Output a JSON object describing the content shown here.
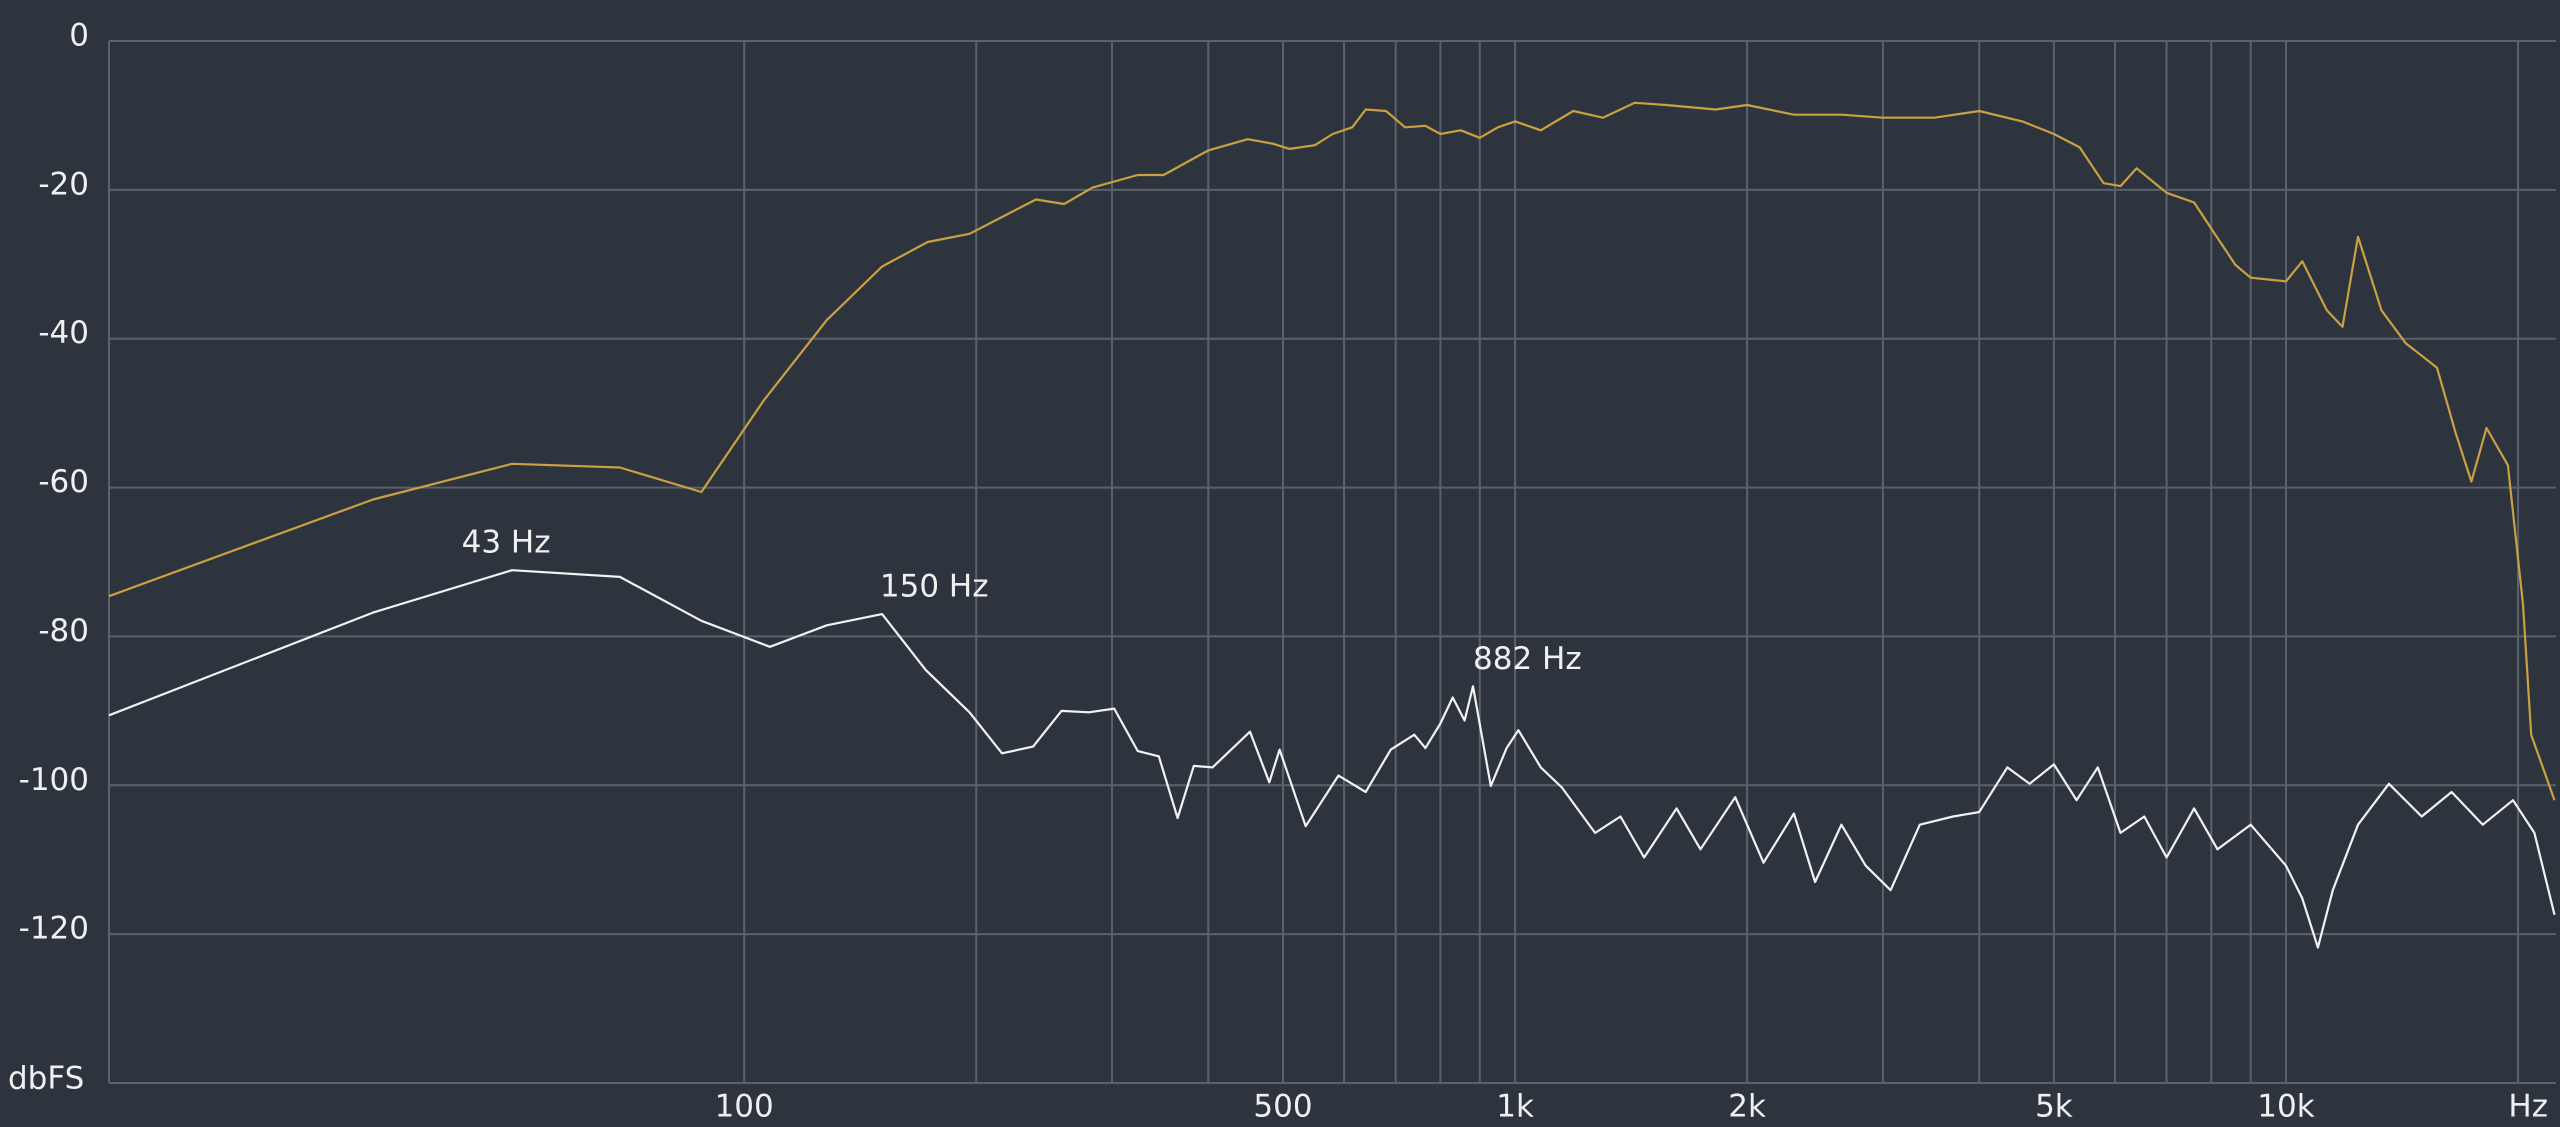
{
  "chart_data": {
    "type": "line",
    "x_label": "Hz",
    "y_label": "dbFS",
    "xscale": "log",
    "xlim": [
      15,
      22400
    ],
    "ylim": [
      -140,
      0
    ],
    "xticks": [
      100,
      500,
      {
        "value": 1000,
        "label": "1k"
      },
      {
        "value": 2000,
        "label": "2k"
      },
      {
        "value": 5000,
        "label": "5k"
      },
      {
        "value": 10000,
        "label": "10k"
      }
    ],
    "xminor": [
      200,
      300,
      400,
      600,
      700,
      800,
      900,
      3000,
      4000,
      6000,
      7000,
      8000,
      9000,
      20000
    ],
    "yticks": [
      0,
      -20,
      -40,
      -60,
      -80,
      -100,
      -120
    ],
    "grid": true,
    "series": [
      {
        "color": "#c9a042",
        "x": [
          15,
          33,
          50,
          69,
          88,
          106,
          128,
          151,
          173,
          196,
          239,
          260,
          283,
          324,
          350,
          400,
          450,
          485,
          510,
          550,
          580,
          615,
          640,
          680,
          720,
          765,
          800,
          850,
          900,
          950,
          1000,
          1080,
          1190,
          1300,
          1430,
          1570,
          1820,
          2000,
          2300,
          2650,
          3000,
          3500,
          4000,
          4550,
          5000,
          5400,
          5800,
          6100,
          6400,
          7000,
          7600,
          8000,
          8600,
          9000,
          10000,
          10500,
          11300,
          11840,
          12400,
          13300,
          14300,
          15700,
          16600,
          17400,
          18200,
          19400,
          20300,
          20800,
          22300
        ],
        "values": [
          -74.6,
          -61.6,
          -56.8,
          -57.3,
          -60.6,
          -48.3,
          -37.5,
          -30.3,
          -27,
          -25.9,
          -21.3,
          -21.9,
          -19.7,
          -18,
          -18,
          -14.7,
          -13.2,
          -13.8,
          -14.5,
          -14,
          -12.5,
          -11.6,
          -9.2,
          -9.4,
          -11.6,
          -11.4,
          -12.5,
          -12,
          -13,
          -11.6,
          -10.8,
          -12,
          -9.4,
          -10.3,
          -8.3,
          -8.6,
          -9.2,
          -8.6,
          -9.9,
          -9.9,
          -10.3,
          -10.3,
          -9.4,
          -10.8,
          -12.5,
          -14.3,
          -19.1,
          -19.5,
          -17.1,
          -20.4,
          -21.7,
          -25.2,
          -30.1,
          -31.8,
          -32.3,
          -29.6,
          -36.2,
          -38.4,
          -26.3,
          -36.2,
          -40.6,
          -43.9,
          -52.7,
          -59.2,
          -52,
          -57,
          -75.7,
          -93.2,
          -102
        ]
      },
      {
        "color": "#f2f2f2",
        "x": [
          15,
          33,
          50,
          69,
          88,
          108,
          128,
          151,
          172,
          196,
          216,
          237,
          258,
          280,
          302,
          324,
          345,
          365,
          383,
          405,
          453,
          480,
          495,
          535,
          590,
          640,
          690,
          740,
          765,
          800,
          830,
          860,
          882,
          930,
          975,
          1010,
          1080,
          1150,
          1270,
          1370,
          1470,
          1620,
          1740,
          1930,
          2100,
          2300,
          2450,
          2650,
          2850,
          3070,
          3350,
          3700,
          4000,
          4350,
          4650,
          5000,
          5350,
          5700,
          6100,
          6550,
          7000,
          7600,
          8150,
          9000,
          10000,
          10500,
          11000,
          11500,
          12400,
          13600,
          15000,
          16400,
          18000,
          19700,
          21000,
          22300
        ],
        "values": [
          -90.6,
          -76.8,
          -71.1,
          -72,
          -77.9,
          -81.4,
          -78.5,
          -77,
          -84.5,
          -90.2,
          -95.7,
          -94.8,
          -90,
          -90.2,
          -89.7,
          -95.4,
          -96.1,
          -104.4,
          -97.4,
          -97.6,
          -92.8,
          -99.6,
          -95.2,
          -105.5,
          -98.7,
          -100.9,
          -95.2,
          -93.2,
          -95,
          -91.7,
          -88.2,
          -91.3,
          -86.7,
          -100.1,
          -95,
          -92.6,
          -97.6,
          -100.3,
          -106.4,
          -104.2,
          -109.7,
          -103.1,
          -108.6,
          -101.6,
          -110.4,
          -103.8,
          -113,
          -105.3,
          -110.8,
          -114.1,
          -105.3,
          -104.2,
          -103.6,
          -97.6,
          -99.8,
          -97.2,
          -102,
          -97.6,
          -106.4,
          -104.2,
          -109.7,
          -103.1,
          -108.6,
          -105.3,
          -110.8,
          -115.2,
          -121.8,
          -114.1,
          -105.3,
          -99.8,
          -104.2,
          -100.9,
          -105.3,
          -102,
          -106.4,
          -117.4
        ]
      }
    ],
    "annotations": [
      {
        "text": "43 Hz",
        "x": 43,
        "y": -71.1,
        "color": "#e07a34"
      },
      {
        "text": "150 Hz",
        "x": 150,
        "y": -77,
        "color": "#e07a34"
      },
      {
        "text": "882 Hz",
        "x": 882,
        "y": -86.7,
        "color": "#e07a34"
      }
    ]
  }
}
